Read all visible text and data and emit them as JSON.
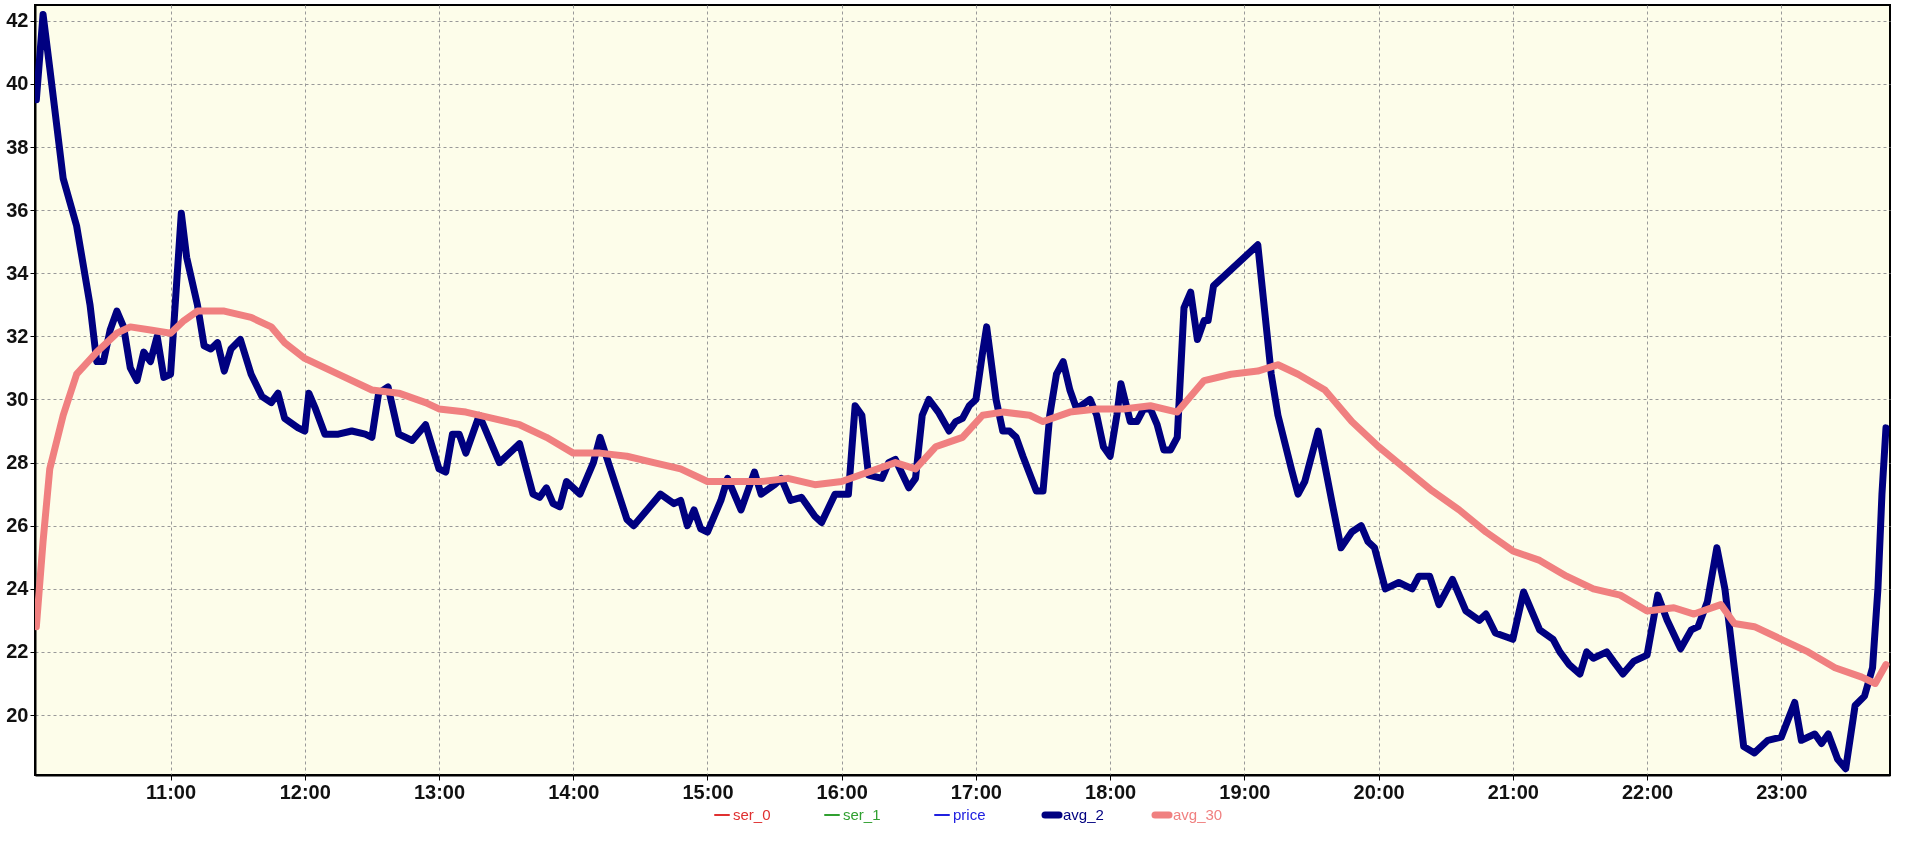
{
  "chart_data": {
    "type": "line",
    "xlim": [
      9.99,
      23.81
    ],
    "ylim": [
      18.1,
      42.5
    ],
    "xticks": [
      {
        "value": 11,
        "label": "11:00"
      },
      {
        "value": 12,
        "label": "12:00"
      },
      {
        "value": 13,
        "label": "13:00"
      },
      {
        "value": 14,
        "label": "14:00"
      },
      {
        "value": 15,
        "label": "15:00"
      },
      {
        "value": 16,
        "label": "16:00"
      },
      {
        "value": 17,
        "label": "17:00"
      },
      {
        "value": 18,
        "label": "18:00"
      },
      {
        "value": 19,
        "label": "19:00"
      },
      {
        "value": 20,
        "label": "20:00"
      },
      {
        "value": 21,
        "label": "21:00"
      },
      {
        "value": 22,
        "label": "22:00"
      },
      {
        "value": 23,
        "label": "23:00"
      }
    ],
    "yticks": [
      20,
      22,
      24,
      26,
      28,
      30,
      32,
      34,
      36,
      38,
      40,
      42
    ],
    "grid": true,
    "legend": "bottom",
    "marker": "none",
    "line_style": "solid",
    "series": [
      {
        "name": "ser_0",
        "color": "#e03030"
      },
      {
        "name": "ser_1",
        "color": "#30a030"
      },
      {
        "name": "price",
        "color": "#2020e0"
      },
      {
        "name": "avg_2",
        "color": "#000080",
        "x": [
          10.0,
          10.05,
          10.1,
          10.2,
          10.3,
          10.4,
          10.45,
          10.5,
          10.55,
          10.6,
          10.65,
          10.7,
          10.75,
          10.8,
          10.85,
          10.9,
          10.95,
          11.0,
          11.05,
          11.08,
          11.12,
          11.2,
          11.25,
          11.3,
          11.35,
          11.4,
          11.45,
          11.52,
          11.6,
          11.68,
          11.75,
          11.8,
          11.85,
          11.95,
          12.0,
          12.03,
          12.08,
          12.15,
          12.25,
          12.35,
          12.45,
          12.5,
          12.55,
          12.62,
          12.7,
          12.8,
          12.9,
          13.0,
          13.05,
          13.1,
          13.15,
          13.2,
          13.3,
          13.4,
          13.45,
          13.5,
          13.6,
          13.7,
          13.75,
          13.8,
          13.85,
          13.9,
          13.95,
          14.0,
          14.05,
          14.15,
          14.2,
          14.3,
          14.4,
          14.45,
          14.55,
          14.65,
          14.75,
          14.8,
          14.85,
          14.9,
          14.95,
          15.0,
          15.1,
          15.15,
          15.25,
          15.35,
          15.4,
          15.5,
          15.55,
          15.62,
          15.7,
          15.8,
          15.85,
          15.95,
          16.0,
          16.05,
          16.1,
          16.15,
          16.2,
          16.3,
          16.35,
          16.4,
          16.5,
          16.55,
          16.6,
          16.65,
          16.72,
          16.8,
          16.85,
          16.9,
          16.95,
          17.0,
          17.05,
          17.08,
          17.15,
          17.2,
          17.25,
          17.3,
          17.35,
          17.45,
          17.5,
          17.55,
          17.6,
          17.65,
          17.7,
          17.75,
          17.85,
          17.9,
          17.95,
          18.0,
          18.05,
          18.08,
          18.15,
          18.2,
          18.25,
          18.3,
          18.35,
          18.4,
          18.45,
          18.5,
          18.55,
          18.6,
          18.65,
          18.7,
          18.73,
          18.77,
          19.1,
          19.2,
          19.25,
          19.35,
          19.4,
          19.45,
          19.55,
          19.65,
          19.72,
          19.8,
          19.87,
          19.92,
          19.97,
          20.05,
          20.15,
          20.25,
          20.3,
          20.38,
          20.45,
          20.55,
          20.65,
          20.75,
          20.8,
          20.87,
          21.0,
          21.08,
          21.15,
          21.2,
          21.3,
          21.35,
          21.42,
          21.5,
          21.55,
          21.6,
          21.7,
          21.75,
          21.82,
          21.9,
          22.0,
          22.08,
          22.15,
          22.25,
          22.33,
          22.38,
          22.45,
          22.52,
          22.58,
          22.65,
          22.72,
          22.8,
          22.9,
          23.0,
          23.1,
          23.15,
          23.25,
          23.3,
          23.35,
          23.42,
          23.48,
          23.55,
          23.62,
          23.68,
          23.72,
          23.75,
          23.78
        ],
        "values": [
          39.5,
          42.2,
          40.5,
          37.0,
          35.5,
          33.0,
          31.2,
          31.2,
          32.2,
          32.8,
          32.3,
          31.0,
          30.6,
          31.5,
          31.2,
          32.0,
          30.7,
          30.8,
          34.0,
          35.9,
          34.5,
          33.0,
          31.7,
          31.6,
          31.8,
          30.9,
          31.6,
          31.9,
          30.8,
          30.1,
          29.9,
          30.2,
          29.4,
          29.1,
          29.0,
          30.2,
          29.7,
          28.9,
          28.9,
          29.0,
          28.9,
          28.8,
          30.2,
          30.4,
          28.9,
          28.7,
          29.2,
          27.8,
          27.7,
          28.9,
          28.9,
          28.3,
          29.5,
          28.5,
          28.0,
          28.2,
          28.6,
          27.0,
          26.9,
          27.2,
          26.7,
          26.6,
          27.4,
          27.2,
          27.0,
          28.0,
          28.8,
          27.5,
          26.2,
          26.0,
          26.5,
          27.0,
          26.7,
          26.8,
          26.0,
          26.5,
          25.9,
          25.8,
          26.8,
          27.5,
          26.5,
          27.7,
          27.0,
          27.3,
          27.5,
          26.8,
          26.9,
          26.3,
          26.1,
          27.0,
          27.0,
          27.0,
          29.8,
          29.5,
          27.6,
          27.5,
          28.0,
          28.1,
          27.2,
          27.5,
          29.5,
          30.0,
          29.6,
          29.0,
          29.3,
          29.4,
          29.8,
          30.0,
          31.5,
          32.3,
          30.0,
          29.0,
          29.0,
          28.8,
          28.2,
          27.1,
          27.1,
          29.5,
          30.8,
          31.2,
          30.3,
          29.7,
          30.0,
          29.5,
          28.5,
          28.2,
          29.5,
          30.5,
          29.3,
          29.3,
          29.7,
          29.7,
          29.2,
          28.4,
          28.4,
          28.8,
          32.9,
          33.4,
          31.9,
          32.5,
          32.5,
          33.6,
          34.9,
          30.8,
          29.5,
          27.8,
          27.0,
          27.4,
          29.0,
          26.8,
          25.3,
          25.8,
          26.0,
          25.5,
          25.3,
          24.0,
          24.2,
          24.0,
          24.4,
          24.4,
          23.5,
          24.3,
          23.3,
          23.0,
          23.2,
          22.6,
          22.4,
          23.9,
          23.2,
          22.7,
          22.4,
          22.0,
          21.6,
          21.3,
          22.0,
          21.8,
          22.0,
          21.7,
          21.3,
          21.7,
          21.9,
          23.8,
          23.0,
          22.1,
          22.7,
          22.8,
          23.6,
          25.3,
          24.0,
          21.5,
          19.0,
          18.8,
          19.2,
          19.3,
          20.4,
          19.2,
          19.4,
          19.1,
          19.4,
          18.6,
          18.3,
          20.3,
          20.6,
          21.5,
          24.0,
          27.0,
          29.1
        ]
      },
      {
        "name": "avg_30",
        "color": "#f08080",
        "x": [
          10.0,
          10.05,
          10.1,
          10.2,
          10.3,
          10.45,
          10.6,
          10.7,
          10.85,
          11.0,
          11.1,
          11.2,
          11.4,
          11.6,
          11.75,
          11.85,
          12.0,
          12.15,
          12.3,
          12.5,
          12.7,
          12.9,
          13.0,
          13.2,
          13.4,
          13.6,
          13.8,
          14.0,
          14.2,
          14.4,
          14.6,
          14.8,
          15.0,
          15.2,
          15.4,
          15.6,
          15.8,
          16.0,
          16.2,
          16.4,
          16.55,
          16.7,
          16.9,
          17.05,
          17.2,
          17.4,
          17.5,
          17.7,
          17.9,
          18.1,
          18.3,
          18.5,
          18.7,
          18.9,
          19.1,
          19.25,
          19.4,
          19.6,
          19.8,
          20.0,
          20.2,
          20.4,
          20.6,
          20.8,
          21.0,
          21.2,
          21.4,
          21.6,
          21.8,
          22.0,
          22.2,
          22.35,
          22.55,
          22.65,
          22.8,
          23.0,
          23.2,
          23.4,
          23.6,
          23.7,
          23.78
        ],
        "values": [
          22.8,
          25.5,
          27.8,
          29.5,
          30.8,
          31.5,
          32.1,
          32.3,
          32.2,
          32.1,
          32.5,
          32.8,
          32.8,
          32.6,
          32.3,
          31.8,
          31.3,
          31.0,
          30.7,
          30.3,
          30.2,
          29.9,
          29.7,
          29.6,
          29.4,
          29.2,
          28.8,
          28.3,
          28.3,
          28.2,
          28.0,
          27.8,
          27.4,
          27.4,
          27.4,
          27.5,
          27.3,
          27.4,
          27.7,
          28.0,
          27.8,
          28.5,
          28.8,
          29.5,
          29.6,
          29.5,
          29.3,
          29.6,
          29.7,
          29.7,
          29.8,
          29.6,
          30.6,
          30.8,
          30.9,
          31.1,
          30.8,
          30.3,
          29.3,
          28.5,
          27.8,
          27.1,
          26.5,
          25.8,
          25.2,
          24.9,
          24.4,
          24.0,
          23.8,
          23.3,
          23.4,
          23.2,
          23.5,
          22.9,
          22.8,
          22.4,
          22.0,
          21.5,
          21.2,
          21.0,
          21.6
        ]
      }
    ]
  }
}
